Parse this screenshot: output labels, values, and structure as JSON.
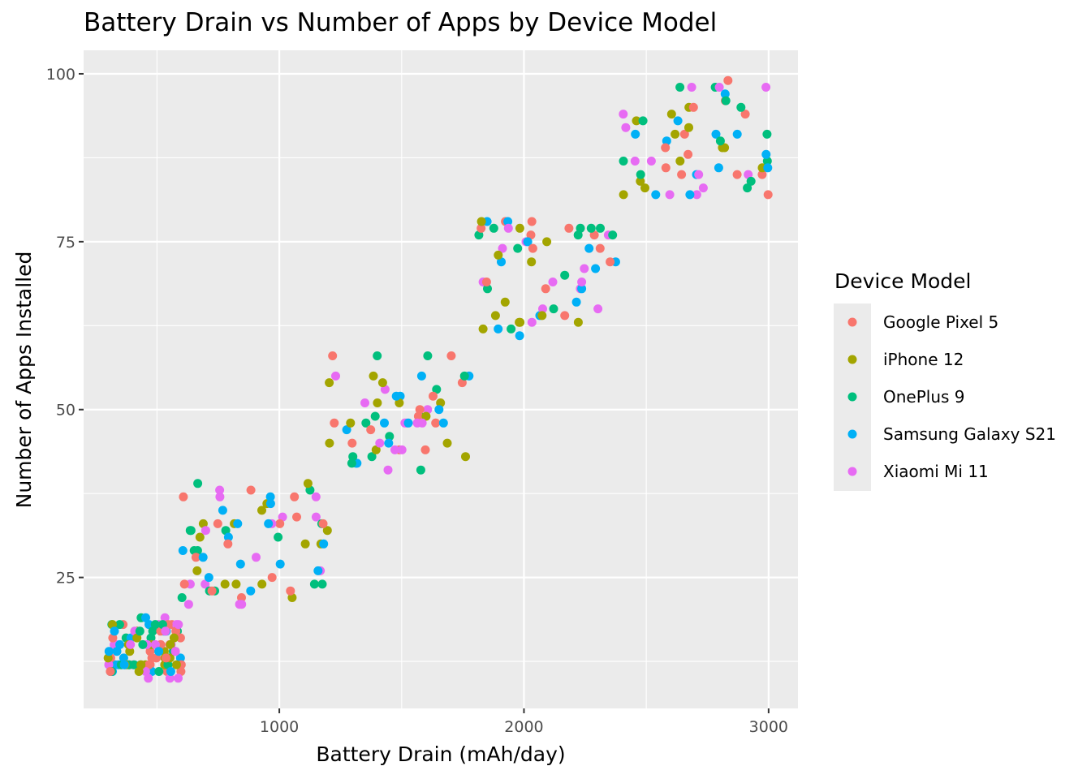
{
  "chart_data": {
    "type": "scatter",
    "title": "Battery Drain vs Number of Apps by Device Model",
    "xlabel": "Battery Drain (mAh/day)",
    "ylabel": "Number of Apps Installed",
    "xlim": [
      200,
      3120
    ],
    "ylim": [
      5.5,
      103.5
    ],
    "xticks": [
      1000,
      2000,
      3000
    ],
    "yticks": [
      25,
      50,
      75,
      100
    ],
    "grid": true,
    "legend": {
      "title": "Device Model",
      "position": "right"
    },
    "clusters": [
      {
        "x": [
          300,
          600
        ],
        "y": [
          10,
          19
        ]
      },
      {
        "x": [
          600,
          1200
        ],
        "y": [
          21,
          39
        ]
      },
      {
        "x": [
          1200,
          1800
        ],
        "y": [
          41,
          59
        ]
      },
      {
        "x": [
          1800,
          2400
        ],
        "y": [
          61,
          79
        ]
      },
      {
        "x": [
          2400,
          3000
        ],
        "y": [
          81,
          99
        ]
      }
    ],
    "points_per_series_per_cluster": [
      20,
      14,
      12,
      12,
      12
    ],
    "series": [
      {
        "name": "Google Pixel 5",
        "color": "#F8766D"
      },
      {
        "name": "iPhone 12",
        "color": "#A3A500"
      },
      {
        "name": "OnePlus 9",
        "color": "#00BF7D"
      },
      {
        "name": "Samsung Galaxy S21",
        "color": "#00B0F6"
      },
      {
        "name": "Xiaomi Mi 11",
        "color": "#E76BF3"
      }
    ]
  },
  "labels": {
    "xticks": [
      "1000",
      "2000",
      "3000"
    ],
    "yticks": [
      "25",
      "50",
      "75",
      "100"
    ]
  }
}
